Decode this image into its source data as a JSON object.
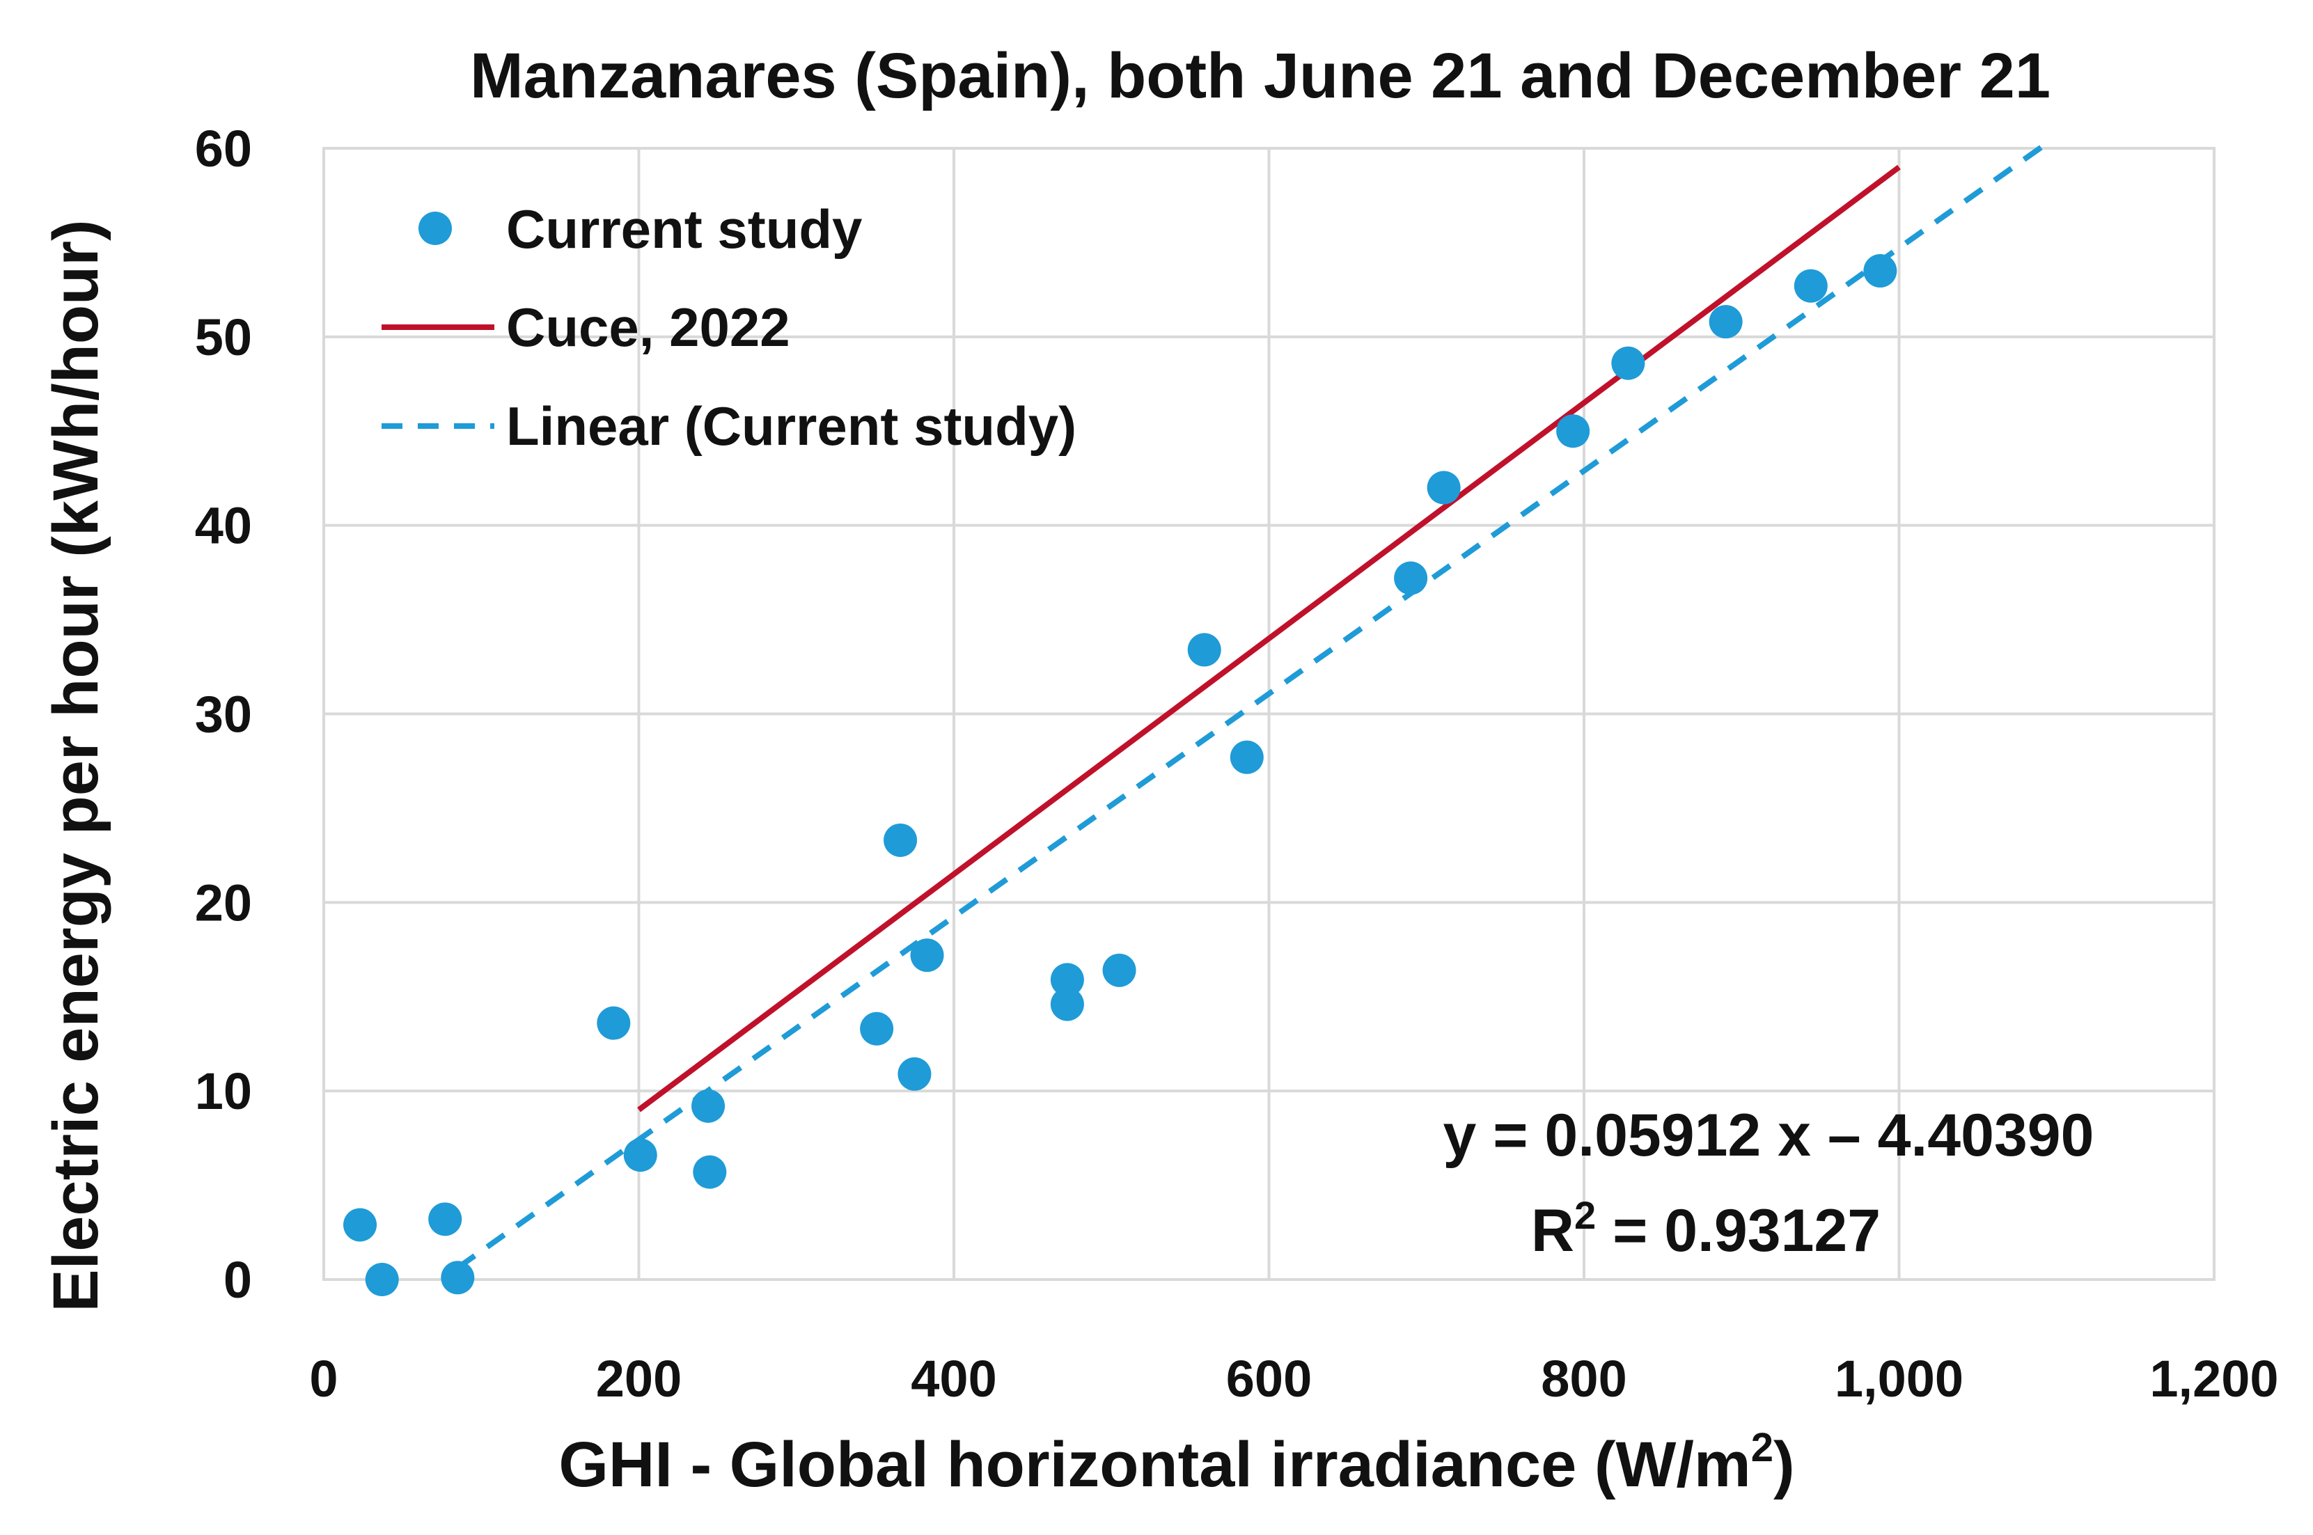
{
  "chart_data": {
    "type": "scatter",
    "title": "Manzanares (Spain), both June 21 and December 21",
    "xlabel": "GHI - Global horizontal irradiance (W/m",
    "xlabel_sup": "2",
    "xlabel_end": ")",
    "ylabel": "Electric energy per hour (kWh/hour)",
    "xlim": [
      0,
      1200
    ],
    "ylim": [
      0,
      60
    ],
    "xticks": [
      0,
      200,
      400,
      600,
      800,
      1000,
      1200
    ],
    "xtick_labels": [
      "0",
      "200",
      "400",
      "600",
      "800",
      "1,000",
      "1,200"
    ],
    "yticks": [
      0,
      10,
      20,
      30,
      40,
      50,
      60
    ],
    "ytick_labels": [
      "0",
      "10",
      "20",
      "30",
      "40",
      "50",
      "60"
    ],
    "grid": true,
    "legend_position": "top-left",
    "series": [
      {
        "name": "Current study",
        "kind": "scatter",
        "color": "#1f9bd7",
        "points": [
          [
            23,
            2.9
          ],
          [
            37,
            0.0
          ],
          [
            77,
            3.2
          ],
          [
            85,
            0.1
          ],
          [
            184,
            13.6
          ],
          [
            201,
            6.6
          ],
          [
            244,
            9.2
          ],
          [
            245,
            5.7
          ],
          [
            351,
            13.3
          ],
          [
            366,
            23.3
          ],
          [
            375,
            10.9
          ],
          [
            383,
            17.2
          ],
          [
            472,
            15.9
          ],
          [
            472,
            14.6
          ],
          [
            505,
            16.4
          ],
          [
            559,
            33.4
          ],
          [
            586,
            27.7
          ],
          [
            690,
            37.2
          ],
          [
            711,
            42.0
          ],
          [
            793,
            45.0
          ],
          [
            828,
            48.6
          ],
          [
            890,
            50.8
          ],
          [
            944,
            52.7
          ],
          [
            988,
            53.5
          ]
        ]
      },
      {
        "name": "Cuce, 2022",
        "kind": "line",
        "color": "#c0112b",
        "x": [
          200,
          1000
        ],
        "y": [
          9,
          59
        ]
      },
      {
        "name": "Linear (Current study)",
        "kind": "trendline",
        "color": "#1f9bd7",
        "slope": 0.05912,
        "intercept": -4.4039,
        "x": [
          85,
          1095
        ]
      }
    ],
    "annotation": {
      "equation": "y = 0.05912 x – 4.40390",
      "r2_label": "R",
      "r2_sup": "2",
      "r2_value": " = 0.93127"
    }
  }
}
